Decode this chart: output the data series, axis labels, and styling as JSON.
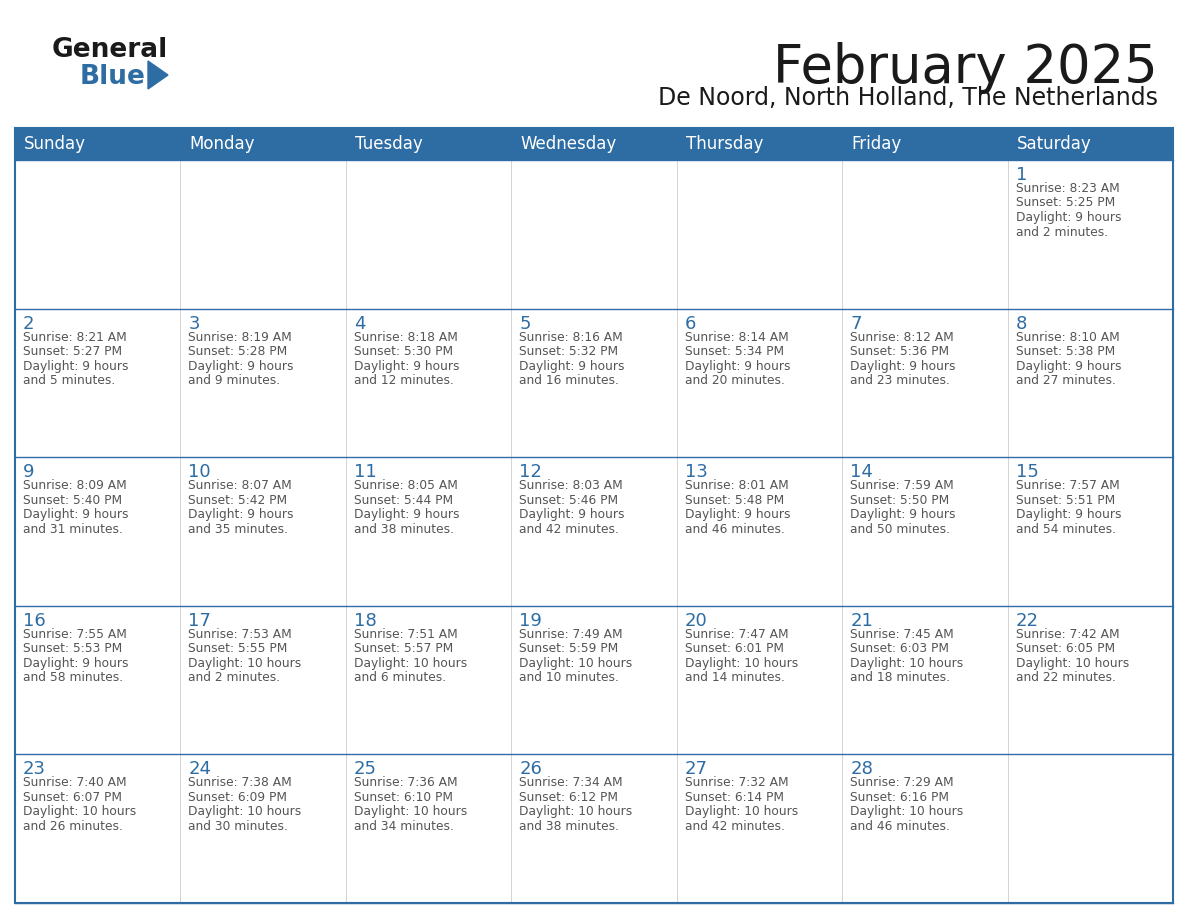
{
  "title": "February 2025",
  "subtitle": "De Noord, North Holland, The Netherlands",
  "header_bg": "#2E6DA4",
  "header_text_color": "#FFFFFF",
  "day_number_color": "#2E6DA4",
  "cell_text_color": "#555555",
  "border_color": "#2E6DA4",
  "days_of_week": [
    "Sunday",
    "Monday",
    "Tuesday",
    "Wednesday",
    "Thursday",
    "Friday",
    "Saturday"
  ],
  "logo_color": "#2E6DA4",
  "calendar_data": [
    [
      {
        "day": "",
        "lines": []
      },
      {
        "day": "",
        "lines": []
      },
      {
        "day": "",
        "lines": []
      },
      {
        "day": "",
        "lines": []
      },
      {
        "day": "",
        "lines": []
      },
      {
        "day": "",
        "lines": []
      },
      {
        "day": "1",
        "lines": [
          "Sunrise: 8:23 AM",
          "Sunset: 5:25 PM",
          "Daylight: 9 hours",
          "and 2 minutes."
        ]
      }
    ],
    [
      {
        "day": "2",
        "lines": [
          "Sunrise: 8:21 AM",
          "Sunset: 5:27 PM",
          "Daylight: 9 hours",
          "and 5 minutes."
        ]
      },
      {
        "day": "3",
        "lines": [
          "Sunrise: 8:19 AM",
          "Sunset: 5:28 PM",
          "Daylight: 9 hours",
          "and 9 minutes."
        ]
      },
      {
        "day": "4",
        "lines": [
          "Sunrise: 8:18 AM",
          "Sunset: 5:30 PM",
          "Daylight: 9 hours",
          "and 12 minutes."
        ]
      },
      {
        "day": "5",
        "lines": [
          "Sunrise: 8:16 AM",
          "Sunset: 5:32 PM",
          "Daylight: 9 hours",
          "and 16 minutes."
        ]
      },
      {
        "day": "6",
        "lines": [
          "Sunrise: 8:14 AM",
          "Sunset: 5:34 PM",
          "Daylight: 9 hours",
          "and 20 minutes."
        ]
      },
      {
        "day": "7",
        "lines": [
          "Sunrise: 8:12 AM",
          "Sunset: 5:36 PM",
          "Daylight: 9 hours",
          "and 23 minutes."
        ]
      },
      {
        "day": "8",
        "lines": [
          "Sunrise: 8:10 AM",
          "Sunset: 5:38 PM",
          "Daylight: 9 hours",
          "and 27 minutes."
        ]
      }
    ],
    [
      {
        "day": "9",
        "lines": [
          "Sunrise: 8:09 AM",
          "Sunset: 5:40 PM",
          "Daylight: 9 hours",
          "and 31 minutes."
        ]
      },
      {
        "day": "10",
        "lines": [
          "Sunrise: 8:07 AM",
          "Sunset: 5:42 PM",
          "Daylight: 9 hours",
          "and 35 minutes."
        ]
      },
      {
        "day": "11",
        "lines": [
          "Sunrise: 8:05 AM",
          "Sunset: 5:44 PM",
          "Daylight: 9 hours",
          "and 38 minutes."
        ]
      },
      {
        "day": "12",
        "lines": [
          "Sunrise: 8:03 AM",
          "Sunset: 5:46 PM",
          "Daylight: 9 hours",
          "and 42 minutes."
        ]
      },
      {
        "day": "13",
        "lines": [
          "Sunrise: 8:01 AM",
          "Sunset: 5:48 PM",
          "Daylight: 9 hours",
          "and 46 minutes."
        ]
      },
      {
        "day": "14",
        "lines": [
          "Sunrise: 7:59 AM",
          "Sunset: 5:50 PM",
          "Daylight: 9 hours",
          "and 50 minutes."
        ]
      },
      {
        "day": "15",
        "lines": [
          "Sunrise: 7:57 AM",
          "Sunset: 5:51 PM",
          "Daylight: 9 hours",
          "and 54 minutes."
        ]
      }
    ],
    [
      {
        "day": "16",
        "lines": [
          "Sunrise: 7:55 AM",
          "Sunset: 5:53 PM",
          "Daylight: 9 hours",
          "and 58 minutes."
        ]
      },
      {
        "day": "17",
        "lines": [
          "Sunrise: 7:53 AM",
          "Sunset: 5:55 PM",
          "Daylight: 10 hours",
          "and 2 minutes."
        ]
      },
      {
        "day": "18",
        "lines": [
          "Sunrise: 7:51 AM",
          "Sunset: 5:57 PM",
          "Daylight: 10 hours",
          "and 6 minutes."
        ]
      },
      {
        "day": "19",
        "lines": [
          "Sunrise: 7:49 AM",
          "Sunset: 5:59 PM",
          "Daylight: 10 hours",
          "and 10 minutes."
        ]
      },
      {
        "day": "20",
        "lines": [
          "Sunrise: 7:47 AM",
          "Sunset: 6:01 PM",
          "Daylight: 10 hours",
          "and 14 minutes."
        ]
      },
      {
        "day": "21",
        "lines": [
          "Sunrise: 7:45 AM",
          "Sunset: 6:03 PM",
          "Daylight: 10 hours",
          "and 18 minutes."
        ]
      },
      {
        "day": "22",
        "lines": [
          "Sunrise: 7:42 AM",
          "Sunset: 6:05 PM",
          "Daylight: 10 hours",
          "and 22 minutes."
        ]
      }
    ],
    [
      {
        "day": "23",
        "lines": [
          "Sunrise: 7:40 AM",
          "Sunset: 6:07 PM",
          "Daylight: 10 hours",
          "and 26 minutes."
        ]
      },
      {
        "day": "24",
        "lines": [
          "Sunrise: 7:38 AM",
          "Sunset: 6:09 PM",
          "Daylight: 10 hours",
          "and 30 minutes."
        ]
      },
      {
        "day": "25",
        "lines": [
          "Sunrise: 7:36 AM",
          "Sunset: 6:10 PM",
          "Daylight: 10 hours",
          "and 34 minutes."
        ]
      },
      {
        "day": "26",
        "lines": [
          "Sunrise: 7:34 AM",
          "Sunset: 6:12 PM",
          "Daylight: 10 hours",
          "and 38 minutes."
        ]
      },
      {
        "day": "27",
        "lines": [
          "Sunrise: 7:32 AM",
          "Sunset: 6:14 PM",
          "Daylight: 10 hours",
          "and 42 minutes."
        ]
      },
      {
        "day": "28",
        "lines": [
          "Sunrise: 7:29 AM",
          "Sunset: 6:16 PM",
          "Daylight: 10 hours",
          "and 46 minutes."
        ]
      },
      {
        "day": "",
        "lines": []
      }
    ]
  ]
}
